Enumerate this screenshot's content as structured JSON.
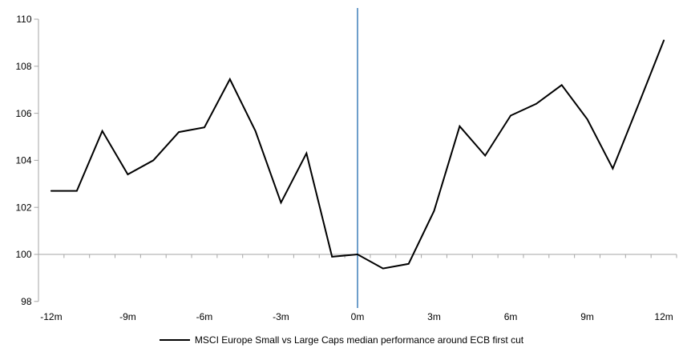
{
  "chart_data": {
    "type": "line",
    "title": "",
    "xlabel": "",
    "ylabel": "",
    "x_unit": "months relative to ECB first cut",
    "x": [
      -12,
      -11,
      -10,
      -9,
      -8,
      -7,
      -6,
      -5,
      -4,
      -3,
      -2,
      -1,
      0,
      1,
      2,
      3,
      4,
      5,
      6,
      7,
      8,
      9,
      10,
      11,
      12
    ],
    "series": [
      {
        "name": "MSCI Europe Small vs Large Caps median performance around ECB first cut",
        "color": "#000000",
        "values": [
          102.7,
          102.7,
          105.25,
          103.4,
          104.0,
          105.2,
          105.4,
          107.45,
          105.25,
          102.2,
          104.3,
          99.9,
          100.0,
          99.4,
          99.6,
          101.85,
          105.45,
          104.2,
          105.9,
          106.4,
          107.2,
          105.75,
          103.65,
          106.35,
          109.1
        ]
      }
    ],
    "x_ticks": [
      {
        "value": -12,
        "label": "-12m"
      },
      {
        "value": -9,
        "label": "-9m"
      },
      {
        "value": -6,
        "label": "-6m"
      },
      {
        "value": -3,
        "label": "-3m"
      },
      {
        "value": 0,
        "label": "0m"
      },
      {
        "value": 3,
        "label": "3m"
      },
      {
        "value": 6,
        "label": "6m"
      },
      {
        "value": 9,
        "label": "9m"
      },
      {
        "value": 12,
        "label": "12m"
      }
    ],
    "y_ticks": [
      98,
      100,
      102,
      104,
      106,
      108,
      110
    ],
    "xlim": [
      -12.5,
      12.5
    ],
    "ylim": [
      98,
      110
    ],
    "baseline_value": 100,
    "minor_tick_step_months": 1,
    "event_line": {
      "x": 0,
      "color": "#6E9FCB"
    },
    "axis_color": "#A6A6A6",
    "grid": false,
    "legend_position": "bottom"
  }
}
